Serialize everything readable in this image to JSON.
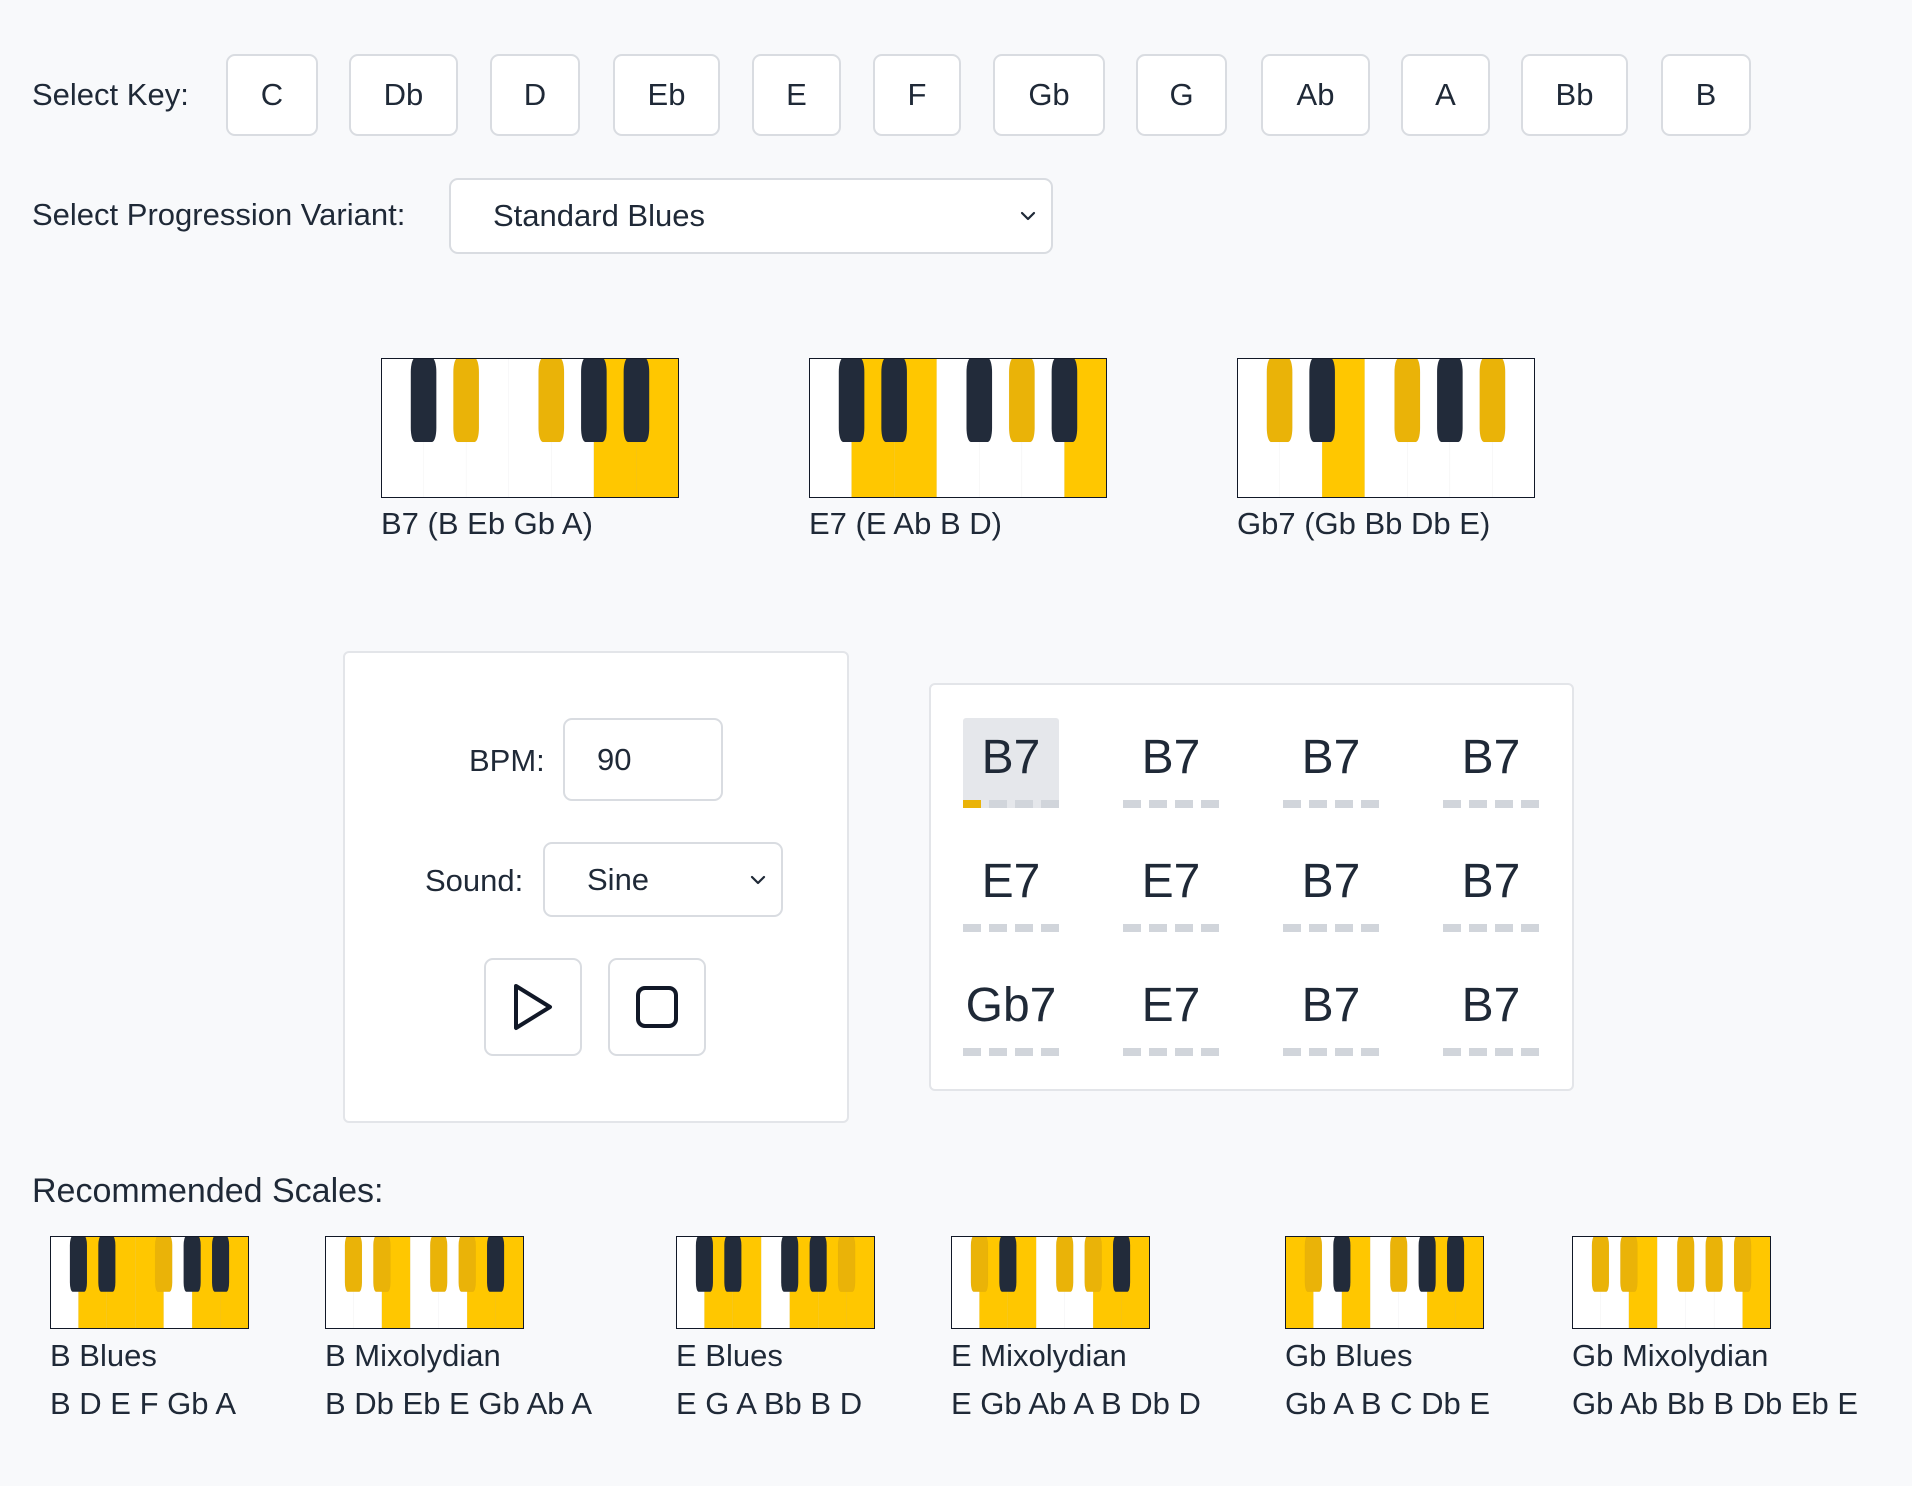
{
  "key_selector": {
    "label": "Select Key:",
    "keys": [
      "C",
      "Db",
      "D",
      "Eb",
      "E",
      "F",
      "Gb",
      "G",
      "Ab",
      "A",
      "Bb",
      "B"
    ]
  },
  "variant_selector": {
    "label": "Select Progression Variant:",
    "value": "Standard Blues"
  },
  "chords": [
    {
      "label": "B7 (B Eb Gb A)",
      "notes": [
        "B",
        "Eb",
        "Gb",
        "A"
      ]
    },
    {
      "label": "E7 (E Ab B D)",
      "notes": [
        "E",
        "Ab",
        "B",
        "D"
      ]
    },
    {
      "label": "Gb7 (Gb Bb Db E)",
      "notes": [
        "Gb",
        "Bb",
        "Db",
        "E"
      ]
    }
  ],
  "controls": {
    "bpm_label": "BPM:",
    "bpm_value": "90",
    "sound_label": "Sound:",
    "sound_value": "Sine",
    "play_icon": "play-icon",
    "stop_icon": "stop-icon"
  },
  "progression": {
    "bars": [
      "B7",
      "B7",
      "B7",
      "B7",
      "E7",
      "E7",
      "B7",
      "B7",
      "Gb7",
      "E7",
      "B7",
      "B7"
    ],
    "active_bar": 0,
    "active_beat": 0
  },
  "scales": {
    "heading": "Recommended Scales:",
    "items": [
      {
        "name": "B Blues",
        "notes": "B D E F Gb A",
        "pitches": [
          "B",
          "D",
          "E",
          "F",
          "Gb",
          "A"
        ]
      },
      {
        "name": "B Mixolydian",
        "notes": "B Db Eb E Gb Ab A",
        "pitches": [
          "B",
          "Db",
          "Eb",
          "E",
          "Gb",
          "Ab",
          "A"
        ]
      },
      {
        "name": "E Blues",
        "notes": "E G A Bb B D",
        "pitches": [
          "E",
          "G",
          "A",
          "Bb",
          "B",
          "D"
        ]
      },
      {
        "name": "E Mixolydian",
        "notes": "E Gb Ab A B Db D",
        "pitches": [
          "E",
          "Gb",
          "Ab",
          "A",
          "B",
          "Db",
          "D"
        ]
      },
      {
        "name": "Gb Blues",
        "notes": "Gb A B C Db E",
        "pitches": [
          "Gb",
          "A",
          "B",
          "C",
          "Db",
          "E"
        ]
      },
      {
        "name": "Gb Mixolydian",
        "notes": "Gb Ab Bb B Db Eb E",
        "pitches": [
          "Gb",
          "Ab",
          "Bb",
          "B",
          "Db",
          "Eb",
          "E"
        ]
      }
    ]
  },
  "colors": {
    "highlight_white": "#ffc700",
    "highlight_black": "#eab308",
    "black_key": "#222b3a",
    "beat_active": "#eab308",
    "beat_idle": "#d1d5db"
  }
}
